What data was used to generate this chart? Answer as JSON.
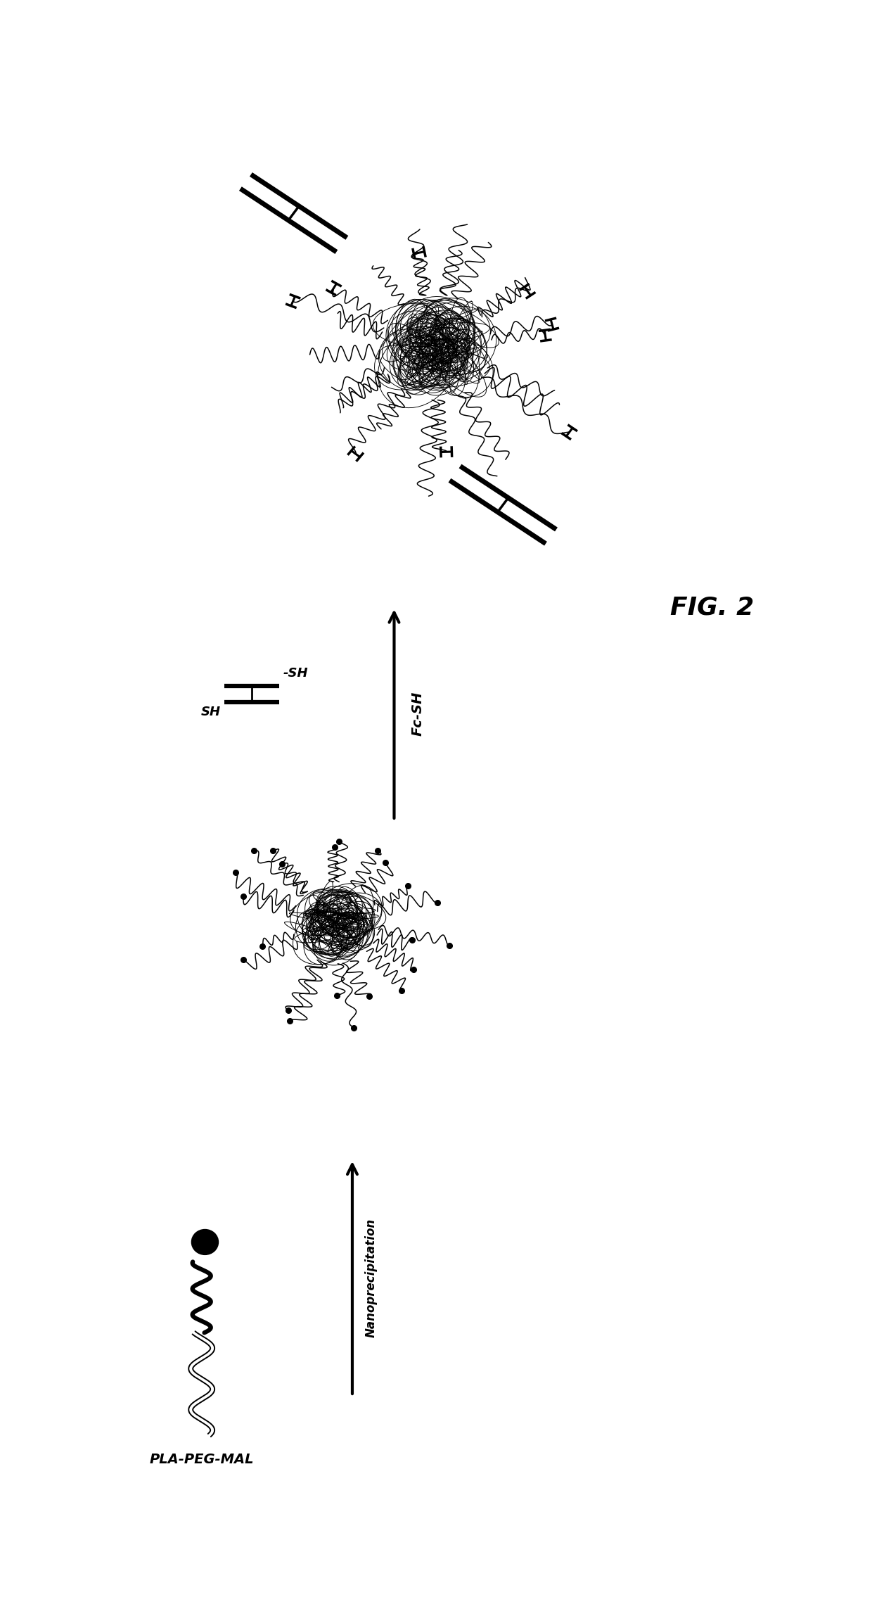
{
  "label_pla": "PLA-PEG-MAL",
  "label_nano": "Nanoprecipitation",
  "label_fc": "Fc-SH",
  "label_sh_left": "SH",
  "label_sh_right": "-SH",
  "fig_label": "FIG. 2",
  "bg_color": "#ffffff",
  "line_color": "#000000",
  "figsize": [
    12.4,
    22.87
  ],
  "dpi": 100,
  "xlim": [
    0,
    10
  ],
  "ylim": [
    0,
    20
  ]
}
